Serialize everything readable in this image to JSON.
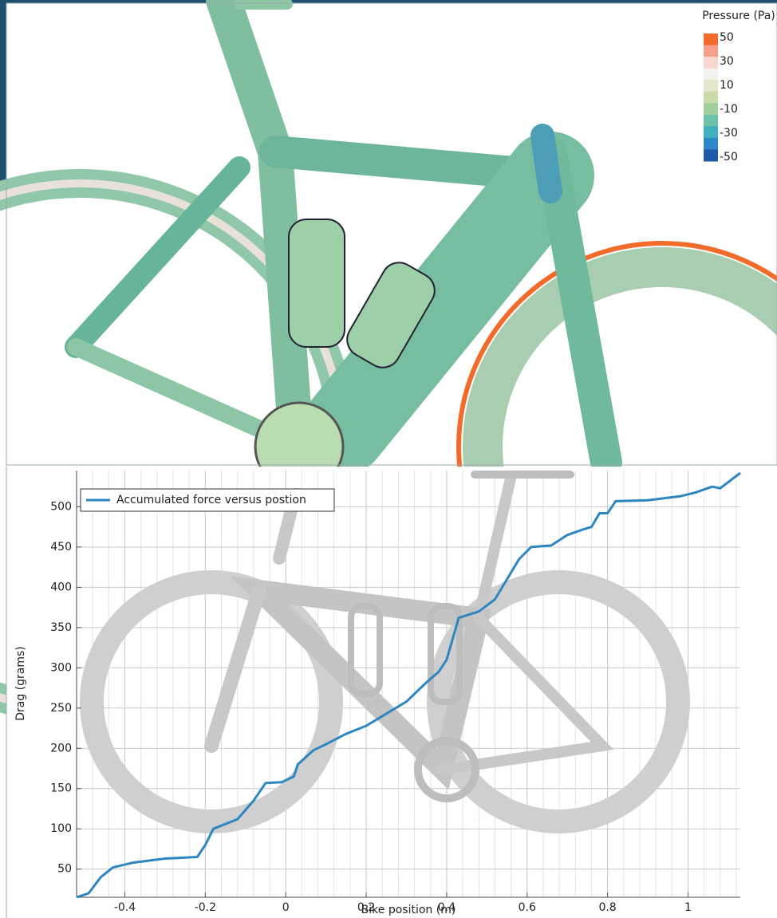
{
  "chart_data": [
    {
      "type": "colorbar",
      "title": "Pressure (Pa)",
      "ticks": [
        50,
        30,
        10,
        -10,
        -30,
        -50
      ],
      "colors": [
        "#f26b2b",
        "#f5a08a",
        "#f6d6cf",
        "#f4f2ec",
        "#e6e6cc",
        "#c8dca8",
        "#9fd09c",
        "#6cc2a8",
        "#3fb0c0",
        "#2e88c8",
        "#1f5aa8"
      ]
    },
    {
      "type": "line",
      "xlabel": "Bike position (m)",
      "ylabel": "Drag (grams)",
      "x": [
        -0.52,
        -0.49,
        -0.46,
        -0.43,
        -0.38,
        -0.3,
        -0.22,
        -0.2,
        -0.18,
        -0.12,
        -0.08,
        -0.05,
        -0.01,
        0.02,
        0.03,
        0.07,
        0.1,
        0.15,
        0.2,
        0.25,
        0.3,
        0.35,
        0.38,
        0.4,
        0.43,
        0.48,
        0.52,
        0.58,
        0.61,
        0.66,
        0.7,
        0.74,
        0.76,
        0.78,
        0.8,
        0.82,
        0.9,
        0.98,
        1.02,
        1.06,
        1.08,
        1.13
      ],
      "series": [
        {
          "name": "Accumulated force versus postion",
          "color": "#2e86c1",
          "values": [
            15,
            20,
            40,
            52,
            58,
            63,
            65,
            80,
            100,
            112,
            135,
            157,
            158,
            165,
            180,
            198,
            205,
            218,
            228,
            243,
            258,
            282,
            295,
            310,
            362,
            370,
            385,
            435,
            450,
            452,
            465,
            472,
            475,
            492,
            492,
            507,
            508,
            513,
            518,
            525,
            523,
            542
          ]
        }
      ],
      "xlim": [
        -0.52,
        1.13
      ],
      "ylim": [
        15,
        545
      ],
      "xticks": [
        -0.4,
        -0.2,
        0,
        0.2,
        0.4,
        0.6,
        0.8,
        1
      ],
      "yticks": [
        50,
        100,
        150,
        200,
        250,
        300,
        350,
        400,
        450,
        500
      ],
      "grid": true,
      "legend": "upper left"
    }
  ]
}
